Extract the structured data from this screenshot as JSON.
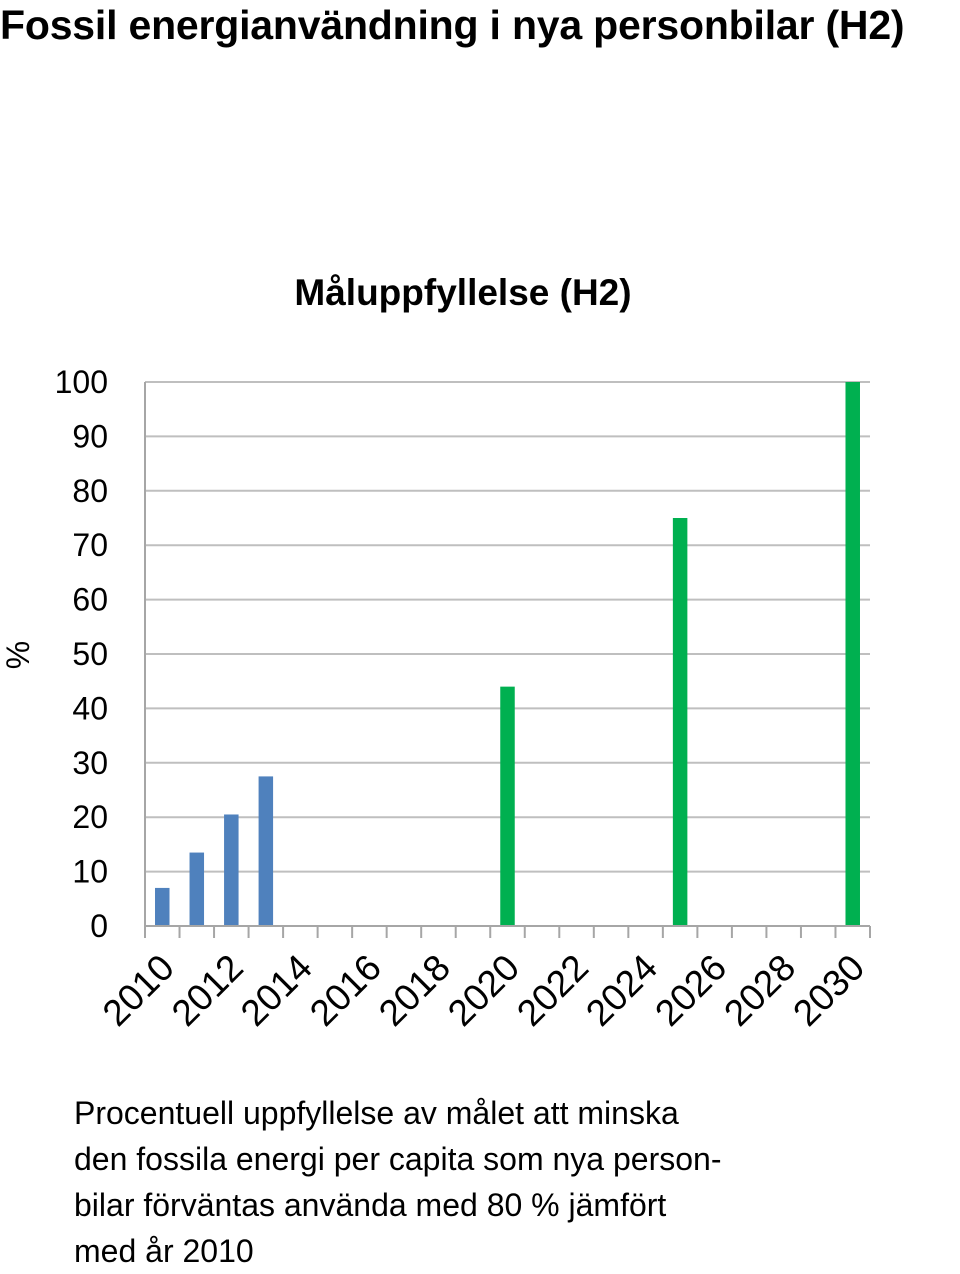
{
  "page": {
    "title": "Fossil energianvändning i nya personbilar (H2)",
    "caption_lines": [
      "Procentuell uppfyllelse av målet att minska",
      "den fossila energi per capita som nya person-",
      "bilar förväntas använda med 80 % jämfört",
      "med år 2010"
    ]
  },
  "chart_data": {
    "type": "bar",
    "title": "Måluppfyllelse (H2)",
    "xlabel": "",
    "ylabel": "%",
    "ylim": [
      0,
      100
    ],
    "yticks": [
      0,
      10,
      20,
      30,
      40,
      50,
      60,
      70,
      80,
      90,
      100
    ],
    "categories": [
      "2010",
      "2011",
      "2012",
      "2013",
      "2014",
      "2015",
      "2016",
      "2017",
      "2018",
      "2019",
      "2020",
      "2021",
      "2022",
      "2023",
      "2024",
      "2025",
      "2026",
      "2027",
      "2028",
      "2029",
      "2030"
    ],
    "xtick_labels": [
      "2010",
      "2012",
      "2014",
      "2016",
      "2018",
      "2020",
      "2022",
      "2024",
      "2026",
      "2028",
      "2030"
    ],
    "series": [
      {
        "color": "#4f81bd",
        "values": [
          7,
          13.5,
          20.5,
          27.5,
          null,
          null,
          null,
          null,
          null,
          null,
          null,
          null,
          null,
          null,
          null,
          null,
          null,
          null,
          null,
          null,
          null
        ]
      },
      {
        "color": "#00b050",
        "values": [
          null,
          null,
          null,
          null,
          null,
          null,
          null,
          null,
          null,
          null,
          44,
          null,
          null,
          null,
          null,
          75,
          null,
          null,
          null,
          null,
          100
        ]
      }
    ],
    "grid": true,
    "legend": "none"
  }
}
